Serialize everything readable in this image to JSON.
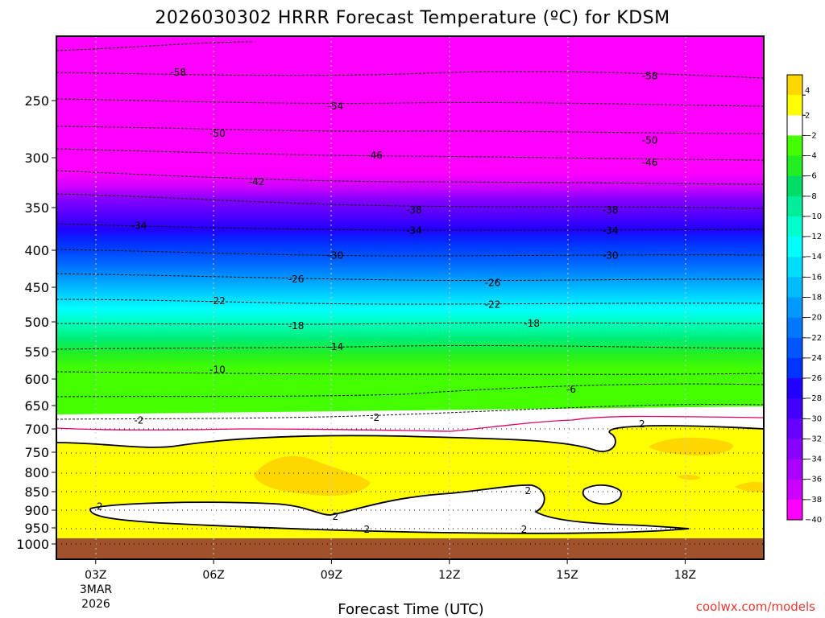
{
  "chart_data": {
    "type": "heatmap",
    "title": "2026030302 HRRR Forecast Temperature (ºC) for KDSM",
    "xlabel": "Forecast Time (UTC)",
    "ylabel": "",
    "credit": "coolwx.com/models",
    "x_ticks": [
      {
        "label": "03Z",
        "hour": 3
      },
      {
        "label": "06Z",
        "hour": 6
      },
      {
        "label": "09Z",
        "hour": 9
      },
      {
        "label": "12Z",
        "hour": 12
      },
      {
        "label": "15Z",
        "hour": 15
      },
      {
        "label": "18Z",
        "hour": 18
      }
    ],
    "x_date_label": [
      "3MAR",
      "2026"
    ],
    "xlim_hours": [
      2,
      20
    ],
    "y_ticks": [
      250,
      300,
      350,
      400,
      450,
      500,
      550,
      600,
      650,
      700,
      750,
      800,
      850,
      900,
      950,
      1000
    ],
    "ylim_hpa": [
      200,
      1030
    ],
    "colorbar_levels": [
      4,
      2,
      -2,
      -4,
      -6,
      -8,
      -10,
      -12,
      -14,
      -16,
      -18,
      -20,
      -22,
      -24,
      -26,
      -28,
      -30,
      -32,
      -34,
      -36,
      -38,
      -40
    ],
    "colorbar_colors": [
      "#ffd700",
      "#ffff00",
      "#ffffff",
      "#44ff00",
      "#22ee22",
      "#00dd66",
      "#00ee99",
      "#00ffcc",
      "#00ffff",
      "#00ddff",
      "#00bbff",
      "#0099ff",
      "#0077ff",
      "#0055ff",
      "#0033ff",
      "#2200ff",
      "#4400ff",
      "#6600ff",
      "#8800ff",
      "#aa00ff",
      "#cc00ff",
      "#ff00ff"
    ],
    "background_below_ground": "#a0522d",
    "contour_labels": [
      {
        "text": "-58",
        "hour": 5.1,
        "hpa": 228
      },
      {
        "text": "-54",
        "hour": 9.1,
        "hpa": 255
      },
      {
        "text": "-50",
        "hour": 6.1,
        "hpa": 279
      },
      {
        "text": "-46",
        "hour": 10.1,
        "hpa": 298
      },
      {
        "text": "-42",
        "hour": 7.1,
        "hpa": 324
      },
      {
        "text": "-38",
        "hour": 11.1,
        "hpa": 353
      },
      {
        "text": "-34",
        "hour": 4.1,
        "hpa": 371
      },
      {
        "text": "-34",
        "hour": 11.1,
        "hpa": 377
      },
      {
        "text": "-30",
        "hour": 9.1,
        "hpa": 407
      },
      {
        "text": "-26",
        "hour": 8.1,
        "hpa": 439
      },
      {
        "text": "-26",
        "hour": 13.1,
        "hpa": 444
      },
      {
        "text": "-22",
        "hour": 6.1,
        "hpa": 470
      },
      {
        "text": "-22",
        "hour": 13.1,
        "hpa": 475
      },
      {
        "text": "-18",
        "hour": 8.1,
        "hpa": 507
      },
      {
        "text": "-18",
        "hour": 14.1,
        "hpa": 503
      },
      {
        "text": "-14",
        "hour": 9.1,
        "hpa": 542
      },
      {
        "text": "-10",
        "hour": 6.1,
        "hpa": 583
      },
      {
        "text": "-6",
        "hour": 15.1,
        "hpa": 620
      },
      {
        "text": "-2",
        "hour": 4.1,
        "hpa": 682
      },
      {
        "text": "-2",
        "hour": 10.1,
        "hpa": 676
      },
      {
        "text": "-58",
        "hour": 17.1,
        "hpa": 231
      },
      {
        "text": "-50",
        "hour": 17.1,
        "hpa": 285
      },
      {
        "text": "-46",
        "hour": 17.1,
        "hpa": 305
      },
      {
        "text": "-38",
        "hour": 16.1,
        "hpa": 353
      },
      {
        "text": "-34",
        "hour": 16.1,
        "hpa": 377
      },
      {
        "text": "-30",
        "hour": 16.1,
        "hpa": 407
      },
      {
        "text": "2",
        "hour": 3.1,
        "hpa": 890
      },
      {
        "text": "2",
        "hour": 9.1,
        "hpa": 918
      },
      {
        "text": "2",
        "hour": 9.9,
        "hpa": 955
      },
      {
        "text": "2",
        "hour": 13.9,
        "hpa": 955
      },
      {
        "text": "2",
        "hour": 14.0,
        "hpa": 848
      },
      {
        "text": "2",
        "hour": 16.9,
        "hpa": 690
      }
    ]
  }
}
